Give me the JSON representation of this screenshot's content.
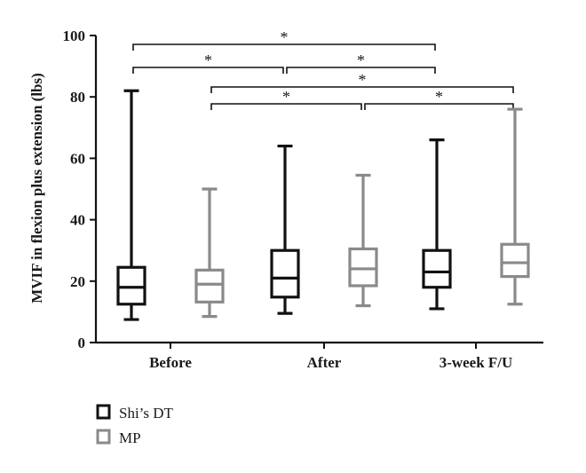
{
  "chart_data": {
    "type": "boxplot",
    "title": "",
    "xlabel": "",
    "ylabel": "MVIF in flexion plus extension (lbs)",
    "ylim": [
      0,
      100
    ],
    "yticks": [
      0,
      20,
      40,
      60,
      80,
      100
    ],
    "grid": false,
    "legend": "bottom-left",
    "categories": [
      "Before",
      "After",
      "3-week F/U"
    ],
    "series": [
      {
        "name": "Shi’s DT",
        "color": "#111111",
        "boxes": [
          {
            "min": 7.5,
            "q1": 12.5,
            "median": 18,
            "q3": 24.5,
            "max": 82
          },
          {
            "min": 9.5,
            "q1": 14.8,
            "median": 21,
            "q3": 30,
            "max": 64
          },
          {
            "min": 11,
            "q1": 18,
            "median": 23,
            "q3": 30,
            "max": 66
          }
        ]
      },
      {
        "name": "MP",
        "color": "#8a8a8a",
        "boxes": [
          {
            "min": 8.5,
            "q1": 13.2,
            "median": 19,
            "q3": 23.6,
            "max": 50
          },
          {
            "min": 12,
            "q1": 18.5,
            "median": 24,
            "q3": 30.5,
            "max": 54.5
          },
          {
            "min": 12.5,
            "q1": 21.5,
            "median": 26,
            "q3": 32,
            "max": 76
          }
        ]
      }
    ],
    "significance": [
      {
        "from": [
          0,
          0
        ],
        "to": [
          2,
          0
        ],
        "label": "*",
        "level": 1
      },
      {
        "from": [
          0,
          0
        ],
        "to": [
          1,
          0
        ],
        "label": "*",
        "level": 2
      },
      {
        "from": [
          1,
          0
        ],
        "to": [
          2,
          0
        ],
        "label": "*",
        "level": 2
      },
      {
        "from": [
          0,
          1
        ],
        "to": [
          2,
          1
        ],
        "label": "*",
        "level": 3
      },
      {
        "from": [
          0,
          1
        ],
        "to": [
          1,
          1
        ],
        "label": "*",
        "level": 4
      },
      {
        "from": [
          1,
          1
        ],
        "to": [
          2,
          1
        ],
        "label": "*",
        "level": 4
      }
    ]
  }
}
